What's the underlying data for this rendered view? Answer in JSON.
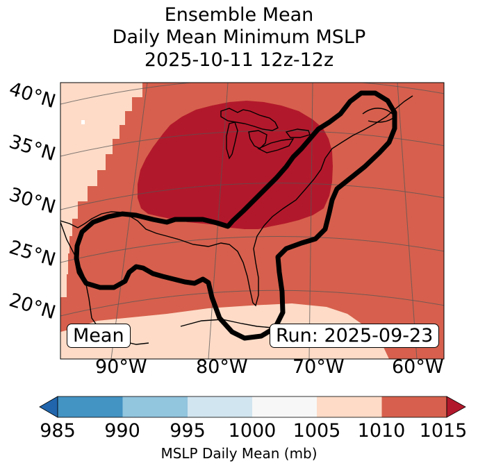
{
  "title": {
    "line1": "Ensemble Mean",
    "line2": "Daily Mean Minimum MSLP",
    "line3": "2025-10-11 12z-12z"
  },
  "map": {
    "region": "Eastern United States and western North Atlantic",
    "lat_labels": [
      "40°N",
      "35°N",
      "30°N",
      "25°N",
      "20°N"
    ],
    "lon_labels": [
      "90°W",
      "80°W",
      "70°W",
      "60°W"
    ],
    "mean_box": "Mean",
    "run_box": "Run: 2025-09-23",
    "colors": {
      "band_1005_1010": "#fddbc7",
      "band_1010_1015": "#d6604d",
      "band_above_1015": "#b2182b",
      "contour": "#000000",
      "coast": "#000000"
    }
  },
  "colorbar": {
    "ticks": [
      "985",
      "990",
      "995",
      "1000",
      "1005",
      "1010",
      "1015"
    ],
    "colors": [
      "#4393c3",
      "#92c5de",
      "#d1e5f0",
      "#f7f7f7",
      "#fddbc7",
      "#d6604d"
    ],
    "under_color": "#2166ac",
    "over_color": "#b2182b",
    "label": "MSLP Daily Mean (mb)"
  }
}
